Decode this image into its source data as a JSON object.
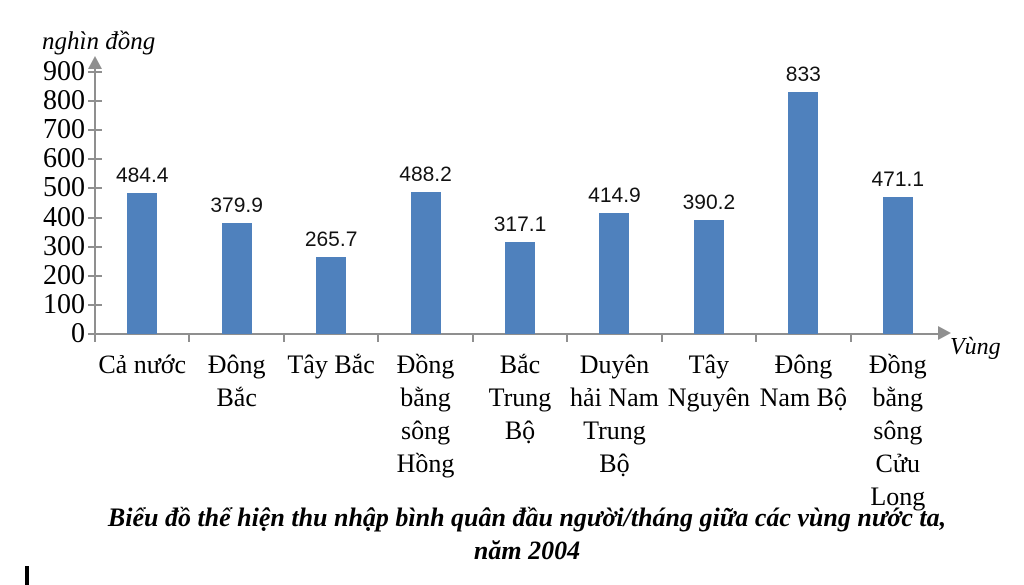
{
  "chart_data": {
    "type": "bar",
    "title": "Biểu đồ thể hiện thu nhập bình quân đầu người/tháng giữa các vùng nước ta, năm 2004",
    "caption_lines": [
      "Biểu đồ thể hiện thu nhập bình quân đầu người/tháng giữa các vùng nước ta,",
      "năm 2004"
    ],
    "ylabel": "nghìn đồng",
    "xlabel": "Vùng",
    "categories": [
      "Cả nước",
      "Đông Bắc",
      "Tây Bắc",
      "Đồng bằng sông Hồng",
      "Bắc Trung Bộ",
      "Duyên hải Nam Trung Bộ",
      "Tây Nguyên",
      "Đông Nam Bộ",
      "Đồng bằng sông Cửu Long"
    ],
    "category_lines": [
      [
        "Cả nước"
      ],
      [
        "Đông",
        "Bắc"
      ],
      [
        "Tây Bắc"
      ],
      [
        "Đồng",
        "bằng",
        "sông",
        "Hồng"
      ],
      [
        "Bắc",
        "Trung",
        "Bộ"
      ],
      [
        "Duyên",
        "hải Nam",
        "Trung",
        "Bộ"
      ],
      [
        "Tây",
        "Nguyên"
      ],
      [
        "Đông",
        "Nam Bộ"
      ],
      [
        "Đồng",
        "bằng",
        "sông",
        "Cửu",
        "Long"
      ]
    ],
    "values": [
      484.4,
      379.9,
      265.7,
      488.2,
      317.1,
      414.9,
      390.2,
      833,
      471.1
    ],
    "value_labels": [
      "484.4",
      "379.9",
      "265.7",
      "488.2",
      "317.1",
      "414.9",
      "390.2",
      "833",
      "471.1"
    ],
    "yticks": [
      0,
      100,
      200,
      300,
      400,
      500,
      600,
      700,
      800,
      900
    ],
    "ylim": [
      0,
      900
    ],
    "grid": false,
    "legend_position": "none",
    "bar_color": "#4f81bd",
    "axis_color": "#8f8f8f"
  }
}
